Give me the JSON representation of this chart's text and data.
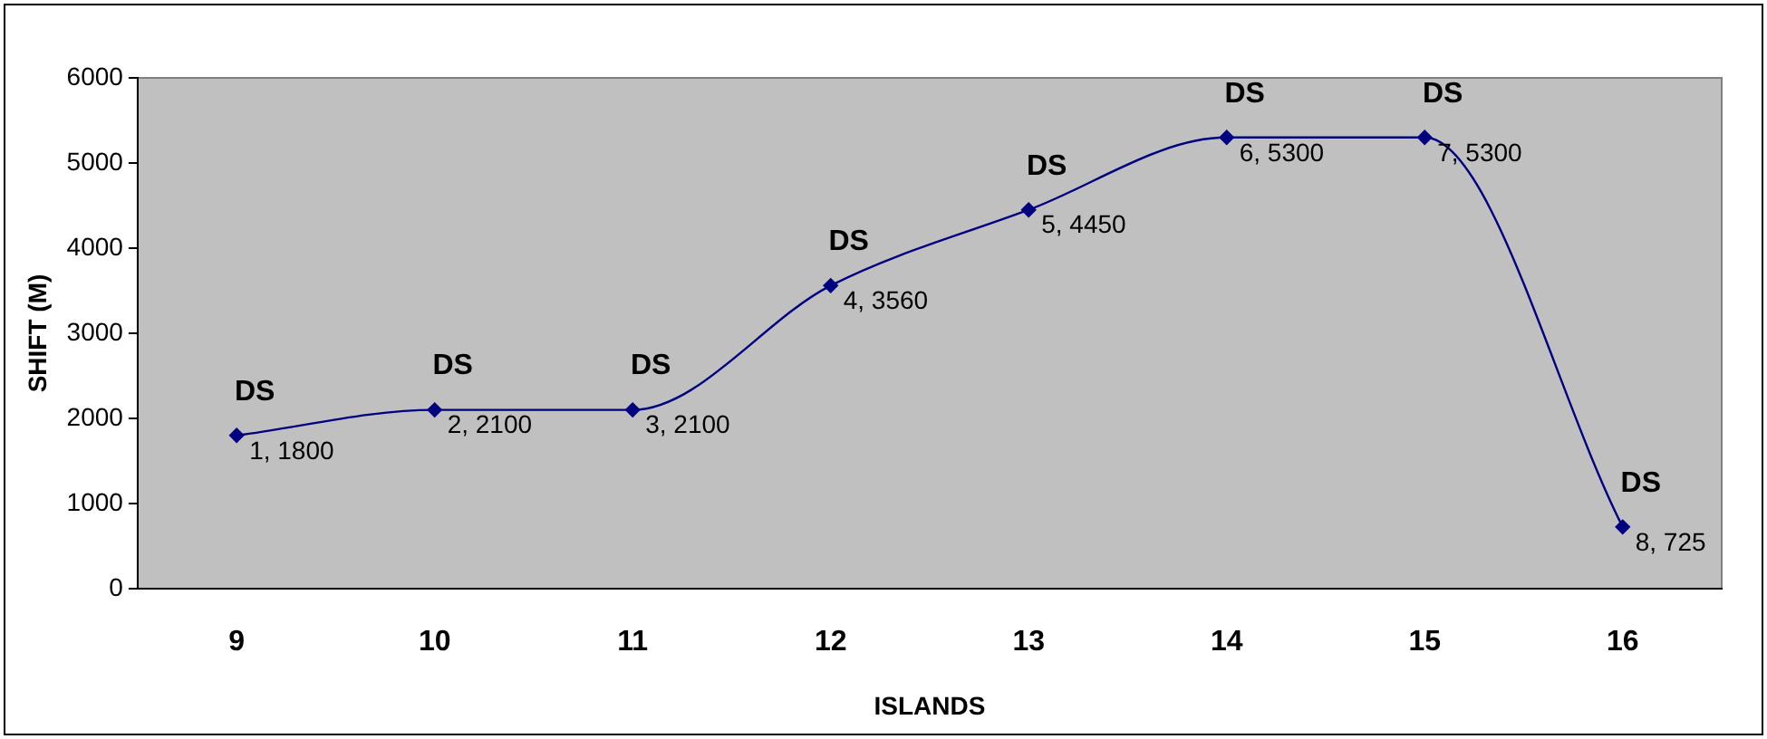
{
  "chart_data": {
    "type": "line",
    "xlabel": "ISLANDS",
    "ylabel": "SHIFT (M)",
    "categories": [
      "9",
      "10",
      "11",
      "12",
      "13",
      "14",
      "15",
      "16"
    ],
    "series": [
      {
        "color": "#000080",
        "values": [
          1800,
          2100,
          2100,
          3560,
          4450,
          5300,
          5300,
          725
        ],
        "value_labels": [
          "1, 1800",
          "2, 2100",
          "3, 2100",
          "4, 3560",
          "5, 4450",
          "6, 5300",
          "7, 5300",
          "8, 725"
        ]
      }
    ],
    "ylim": [
      0,
      6000
    ],
    "yticks": [
      0,
      1000,
      2000,
      3000,
      4000,
      5000,
      6000
    ],
    "grid": false,
    "legend": false,
    "marker": "diamond",
    "line_style": "solid",
    "annotations": [
      {
        "text": "DS",
        "x": "9",
        "y": 1800
      },
      {
        "text": "DS",
        "x": "10",
        "y": 2100
      },
      {
        "text": "DS",
        "x": "11",
        "y": 2100
      },
      {
        "text": "DS",
        "x": "12",
        "y": 3560
      },
      {
        "text": "DS",
        "x": "13",
        "y": 4450
      },
      {
        "text": "DS",
        "x": "14",
        "y": 5300
      },
      {
        "text": "DS",
        "x": "15",
        "y": 5300
      },
      {
        "text": "DS",
        "x": "16",
        "y": 725
      }
    ]
  }
}
